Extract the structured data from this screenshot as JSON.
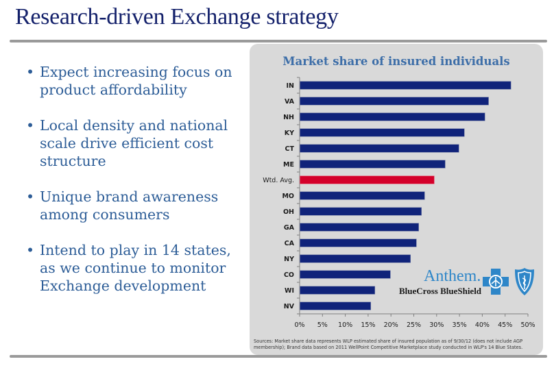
{
  "slide": {
    "title": "Research-driven Exchange strategy",
    "bullets": [
      "Expect increasing focus on product affordability",
      "Local density and national scale drive efficient cost structure",
      "Unique brand awareness among consumers",
      "Intend to play in 14 states, as we continue to monitor Exchange development"
    ],
    "bullet_glyph": "•",
    "sources": "Sources: Market share data represents WLP estimated share of insured population as of 9/30/12 (does not include AGP membership); Brand data based on 2011 WellPoint Competitive Marketplace study conducted in WLP's 14 Blue States.",
    "logo": {
      "anthem": "Anthem.",
      "bcbs": "BlueCross BlueShield",
      "cross_icon": "blue-cross-icon",
      "shield_icon": "blue-shield-icon"
    }
  },
  "colors": {
    "title": "#14216b",
    "bullet_text": "#2d5d97",
    "bar": "#10237a",
    "highlight_bar": "#d4002a",
    "panel": "#d9d9d9",
    "brand_blue": "#2e86c8"
  },
  "chart_data": {
    "type": "bar",
    "orientation": "horizontal",
    "title": "Market share of insured individuals",
    "xlabel": "",
    "ylabel": "",
    "categories": [
      "IN",
      "VA",
      "NH",
      "KY",
      "CT",
      "ME",
      "Wtd. Avg.",
      "MO",
      "OH",
      "GA",
      "CA",
      "NY",
      "CO",
      "WI",
      "NV"
    ],
    "values": [
      46.2,
      41.3,
      40.5,
      36.0,
      34.8,
      31.8,
      29.4,
      27.3,
      26.6,
      26.0,
      25.5,
      24.2,
      19.8,
      16.4,
      15.5
    ],
    "highlight": "Wtd. Avg.",
    "xlim": [
      0,
      50
    ],
    "xticks": [
      0,
      5,
      10,
      15,
      20,
      25,
      30,
      35,
      40,
      45,
      50
    ],
    "xtick_labels": [
      "0%",
      "5%",
      "10%",
      "15%",
      "20%",
      "25%",
      "30%",
      "35%",
      "40%",
      "45%",
      "50%"
    ],
    "unit": "%",
    "grid": false,
    "legend": "none"
  }
}
